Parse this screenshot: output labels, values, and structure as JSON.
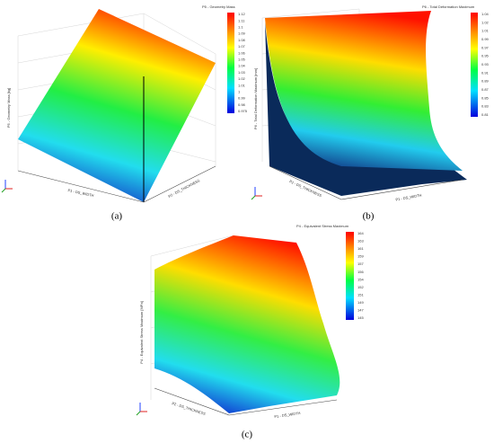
{
  "panels": [
    {
      "label": "(a)",
      "colorbar_title": "P5 - Geometry Mass",
      "z_label": "P5 - Geometry Mass [kg]",
      "x_label": "P1 - DS_WIDTH",
      "y_label": "P2 - DS_THICKNESS",
      "colorbar_ticks": [
        "1.12",
        "1.11",
        "1.1",
        "1.09",
        "1.08",
        "1.07",
        "1.06",
        "1.05",
        "1.04",
        "1.03",
        "1.02",
        "1.01",
        "1",
        "0.99",
        "0.98",
        "0.975"
      ]
    },
    {
      "label": "(b)",
      "colorbar_title": "P6 - Total Deformation Maximum",
      "z_label": "P6 - Total Deformation Maximum [mm]",
      "x_label": "P1 - DS_WIDTH",
      "y_label": "P2 - DS_THICKNESS",
      "colorbar_ticks": [
        "1.04",
        "1.02",
        "1.01",
        "0.99",
        "0.97",
        "0.95",
        "0.93",
        "0.91",
        "0.89",
        "0.87",
        "0.85",
        "0.83",
        "0.81"
      ]
    },
    {
      "label": "(c)",
      "colorbar_title": "P4 - Equivalent Stress Maximum",
      "z_label": "P4 - Equivalent Stress Maximum [MPa]",
      "x_label": "P1 - DS_WIDTH",
      "y_label": "P2 - DS_THICKNESS",
      "colorbar_ticks": [
        "164",
        "163",
        "161",
        "159",
        "157",
        "156",
        "154",
        "152",
        "151",
        "149",
        "147",
        "145"
      ]
    }
  ]
}
